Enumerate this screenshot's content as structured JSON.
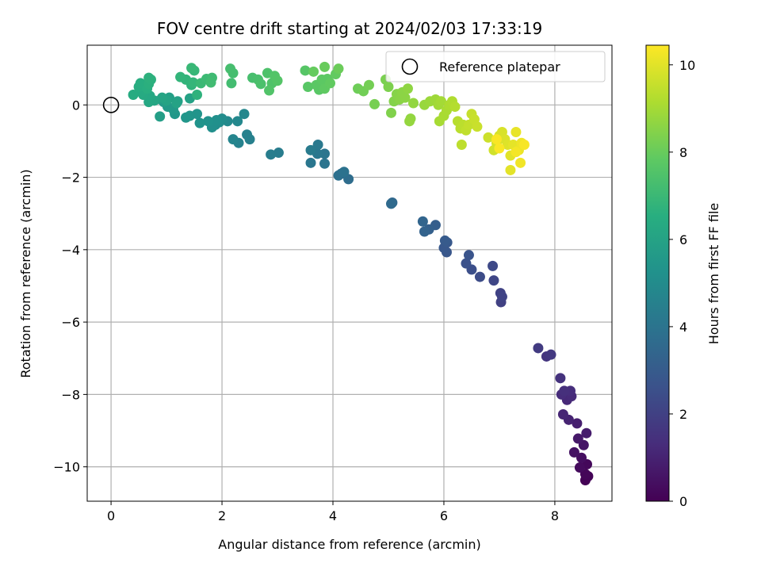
{
  "chart_data": {
    "type": "scatter",
    "title": "FOV centre drift starting at 2024/02/03 17:33:19",
    "xlabel": "Angular distance from reference (arcmin)",
    "ylabel": "Rotation from reference (arcmin)",
    "xlim": [
      -0.43,
      9.03
    ],
    "ylim": [
      -10.95,
      1.65
    ],
    "xticks": [
      0,
      2,
      4,
      6,
      8
    ],
    "yticks": [
      0,
      -2,
      -4,
      -6,
      -8,
      -10
    ],
    "xtick_labels": [
      "0",
      "2",
      "4",
      "6",
      "8"
    ],
    "ytick_labels": [
      "0",
      "−2",
      "−4",
      "−6",
      "−8",
      "−10"
    ],
    "grid": true,
    "legend": {
      "placement": "top-right",
      "entries": [
        "Reference platepar"
      ]
    },
    "reference_point": {
      "x": 0,
      "y": 0,
      "label": "Reference platepar"
    },
    "colorbar": {
      "label": "Hours from first FF file",
      "range": [
        0,
        10.45
      ],
      "ticks": [
        0,
        2,
        4,
        6,
        8,
        10
      ],
      "tick_labels": [
        "0",
        "2",
        "4",
        "6",
        "8",
        "10"
      ],
      "colormap": "viridis"
    },
    "points": [
      [
        8.55,
        -10.37,
        0.05
      ],
      [
        8.6,
        -10.26,
        0.1
      ],
      [
        8.55,
        -10.2,
        0.15
      ],
      [
        8.58,
        -9.93,
        0.2
      ],
      [
        8.45,
        -10.02,
        0.3
      ],
      [
        8.48,
        -9.75,
        0.4
      ],
      [
        8.35,
        -9.6,
        0.5
      ],
      [
        8.52,
        -9.4,
        0.6
      ],
      [
        8.42,
        -9.22,
        0.7
      ],
      [
        8.57,
        -9.07,
        0.8
      ],
      [
        8.4,
        -8.8,
        0.9
      ],
      [
        8.25,
        -8.7,
        1.0
      ],
      [
        8.15,
        -8.55,
        1.1
      ],
      [
        8.22,
        -8.15,
        1.2
      ],
      [
        8.3,
        -8.05,
        1.25
      ],
      [
        8.12,
        -8.0,
        1.3
      ],
      [
        8.28,
        -7.9,
        1.35
      ],
      [
        8.17,
        -7.9,
        1.4
      ],
      [
        8.1,
        -7.55,
        1.5
      ],
      [
        7.85,
        -6.95,
        1.6
      ],
      [
        7.93,
        -6.9,
        1.7
      ],
      [
        7.7,
        -6.72,
        1.8
      ],
      [
        7.03,
        -5.45,
        2.0
      ],
      [
        7.02,
        -5.2,
        2.05
      ],
      [
        7.05,
        -5.3,
        2.1
      ],
      [
        6.9,
        -4.85,
        2.2
      ],
      [
        6.88,
        -4.45,
        2.3
      ],
      [
        6.65,
        -4.75,
        2.4
      ],
      [
        6.5,
        -4.55,
        2.5
      ],
      [
        6.4,
        -4.38,
        2.6
      ],
      [
        6.45,
        -4.15,
        2.7
      ],
      [
        6.05,
        -4.07,
        2.8
      ],
      [
        6.0,
        -3.95,
        2.85
      ],
      [
        6.06,
        -3.8,
        2.9
      ],
      [
        6.02,
        -3.75,
        3.0
      ],
      [
        5.85,
        -3.32,
        3.1
      ],
      [
        5.73,
        -3.44,
        3.2
      ],
      [
        5.65,
        -3.5,
        3.3
      ],
      [
        5.62,
        -3.22,
        3.4
      ],
      [
        5.07,
        -2.7,
        3.5
      ],
      [
        5.05,
        -2.73,
        3.6
      ],
      [
        4.28,
        -2.05,
        3.7
      ],
      [
        4.15,
        -1.9,
        3.8
      ],
      [
        4.1,
        -1.95,
        3.85
      ],
      [
        4.2,
        -1.85,
        3.9
      ],
      [
        3.85,
        -1.62,
        4.0
      ],
      [
        3.85,
        -1.35,
        4.05
      ],
      [
        3.6,
        -1.6,
        4.1
      ],
      [
        3.72,
        -1.35,
        4.15
      ],
      [
        3.73,
        -1.1,
        4.2
      ],
      [
        3.6,
        -1.25,
        4.3
      ],
      [
        3.02,
        -1.32,
        4.35
      ],
      [
        2.88,
        -1.37,
        4.4
      ],
      [
        2.5,
        -0.95,
        4.5
      ],
      [
        2.45,
        -0.82,
        4.55
      ],
      [
        2.3,
        -1.05,
        4.6
      ],
      [
        2.2,
        -0.95,
        4.7
      ],
      [
        2.4,
        -0.25,
        4.8
      ],
      [
        2.28,
        -0.45,
        4.85
      ],
      [
        2.1,
        -0.45,
        4.9
      ],
      [
        2.0,
        -0.38,
        5.0
      ],
      [
        1.95,
        -0.48,
        5.05
      ],
      [
        1.88,
        -0.55,
        5.1
      ],
      [
        1.82,
        -0.62,
        5.15
      ],
      [
        1.9,
        -0.42,
        5.2
      ],
      [
        1.75,
        -0.45,
        5.25
      ],
      [
        1.6,
        -0.5,
        5.3
      ],
      [
        1.55,
        -0.25,
        5.35
      ],
      [
        1.42,
        -0.3,
        5.4
      ],
      [
        1.35,
        -0.35,
        5.45
      ],
      [
        1.15,
        -0.25,
        5.5
      ],
      [
        1.12,
        -0.12,
        5.6
      ],
      [
        1.02,
        -0.05,
        5.65
      ],
      [
        0.95,
        0.08,
        5.7
      ],
      [
        0.9,
        0.15,
        5.75
      ],
      [
        0.88,
        -0.32,
        5.8
      ],
      [
        1.05,
        0.2,
        5.85
      ],
      [
        1.2,
        0.1,
        5.9
      ],
      [
        1.42,
        0.18,
        5.95
      ],
      [
        1.18,
        0.05,
        6.0
      ],
      [
        1.0,
        0.12,
        6.05
      ],
      [
        0.92,
        0.2,
        6.1
      ],
      [
        0.78,
        0.12,
        6.15
      ],
      [
        0.68,
        0.08,
        6.2
      ],
      [
        0.7,
        0.25,
        6.25
      ],
      [
        0.58,
        0.28,
        6.3
      ],
      [
        0.55,
        0.35,
        6.35
      ],
      [
        0.4,
        0.28,
        6.4
      ],
      [
        0.5,
        0.5,
        6.45
      ],
      [
        0.53,
        0.6,
        6.5
      ],
      [
        0.65,
        0.45,
        6.55
      ],
      [
        0.68,
        0.58,
        6.6
      ],
      [
        0.72,
        0.7,
        6.62
      ],
      [
        0.68,
        0.75,
        6.65
      ],
      [
        1.55,
        0.28,
        6.7
      ],
      [
        1.45,
        0.55,
        6.75
      ],
      [
        1.35,
        0.7,
        6.78
      ],
      [
        1.25,
        0.77,
        6.8
      ],
      [
        1.48,
        0.62,
        6.85
      ],
      [
        1.5,
        0.95,
        6.9
      ],
      [
        1.45,
        1.02,
        6.95
      ],
      [
        1.62,
        0.6,
        7.0
      ],
      [
        1.72,
        0.72,
        7.05
      ],
      [
        1.82,
        0.75,
        7.1
      ],
      [
        1.8,
        0.62,
        7.15
      ],
      [
        2.17,
        0.6,
        7.2
      ],
      [
        2.2,
        0.88,
        7.25
      ],
      [
        2.15,
        1.0,
        7.28
      ],
      [
        2.55,
        0.75,
        7.3
      ],
      [
        2.65,
        0.7,
        7.35
      ],
      [
        2.7,
        0.58,
        7.4
      ],
      [
        2.82,
        0.88,
        7.45
      ],
      [
        2.9,
        0.6,
        7.5
      ],
      [
        2.85,
        0.4,
        7.55
      ],
      [
        2.95,
        0.8,
        7.58
      ],
      [
        3.0,
        0.67,
        7.6
      ],
      [
        3.5,
        0.95,
        7.65
      ],
      [
        3.55,
        0.5,
        7.7
      ],
      [
        3.75,
        0.42,
        7.72
      ],
      [
        3.7,
        0.55,
        7.75
      ],
      [
        3.8,
        0.7,
        7.78
      ],
      [
        3.9,
        0.72,
        7.8
      ],
      [
        3.85,
        0.45,
        7.85
      ],
      [
        3.95,
        0.6,
        7.88
      ],
      [
        4.05,
        0.85,
        7.9
      ],
      [
        3.65,
        0.92,
        7.95
      ],
      [
        3.85,
        1.05,
        8.0
      ],
      [
        4.1,
        1.0,
        8.05
      ],
      [
        4.45,
        0.45,
        8.1
      ],
      [
        4.55,
        0.38,
        8.15
      ],
      [
        4.65,
        0.55,
        8.2
      ],
      [
        4.75,
        0.02,
        8.25
      ],
      [
        4.95,
        0.7,
        8.3
      ],
      [
        5.0,
        0.5,
        8.35
      ],
      [
        5.05,
        -0.22,
        8.4
      ],
      [
        5.1,
        0.1,
        8.45
      ],
      [
        5.15,
        0.3,
        8.5
      ],
      [
        5.2,
        0.15,
        8.55
      ],
      [
        5.25,
        0.35,
        8.58
      ],
      [
        5.3,
        0.2,
        8.6
      ],
      [
        5.35,
        0.45,
        8.65
      ],
      [
        5.4,
        -0.38,
        8.7
      ],
      [
        5.45,
        0.05,
        8.72
      ],
      [
        5.38,
        -0.45,
        8.75
      ],
      [
        5.65,
        0.0,
        8.8
      ],
      [
        5.75,
        0.1,
        8.85
      ],
      [
        5.85,
        0.15,
        8.9
      ],
      [
        5.9,
        0.0,
        8.95
      ],
      [
        5.95,
        0.1,
        9.0
      ],
      [
        5.92,
        -0.45,
        9.05
      ],
      [
        6.0,
        -0.3,
        9.08
      ],
      [
        6.05,
        -0.15,
        9.1
      ],
      [
        6.1,
        0.0,
        9.15
      ],
      [
        6.15,
        0.1,
        9.2
      ],
      [
        6.2,
        -0.05,
        9.25
      ],
      [
        6.25,
        -0.45,
        9.3
      ],
      [
        6.3,
        -0.65,
        9.35
      ],
      [
        6.35,
        -0.55,
        9.38
      ],
      [
        6.32,
        -1.1,
        9.4
      ],
      [
        6.4,
        -0.7,
        9.45
      ],
      [
        6.45,
        -0.55,
        9.5
      ],
      [
        6.5,
        -0.25,
        9.55
      ],
      [
        6.55,
        -0.4,
        9.58
      ],
      [
        6.6,
        -0.6,
        9.6
      ],
      [
        6.8,
        -0.9,
        9.65
      ],
      [
        6.9,
        -1.25,
        9.7
      ],
      [
        6.95,
        -1.05,
        9.75
      ],
      [
        7.0,
        -0.85,
        9.8
      ],
      [
        7.05,
        -0.75,
        9.85
      ],
      [
        7.1,
        -0.95,
        9.9
      ],
      [
        7.15,
        -1.1,
        9.95
      ],
      [
        7.2,
        -1.4,
        10.0
      ],
      [
        7.2,
        -1.8,
        10.02
      ],
      [
        7.25,
        -1.1,
        10.05
      ],
      [
        7.3,
        -0.75,
        10.1
      ],
      [
        7.35,
        -1.25,
        10.15
      ],
      [
        7.4,
        -1.05,
        10.2
      ],
      [
        7.38,
        -1.6,
        10.25
      ],
      [
        7.3,
        -1.3,
        10.3
      ],
      [
        7.45,
        -1.1,
        10.35
      ],
      [
        6.95,
        -0.95,
        10.38
      ],
      [
        7.0,
        -1.2,
        10.4
      ]
    ]
  }
}
